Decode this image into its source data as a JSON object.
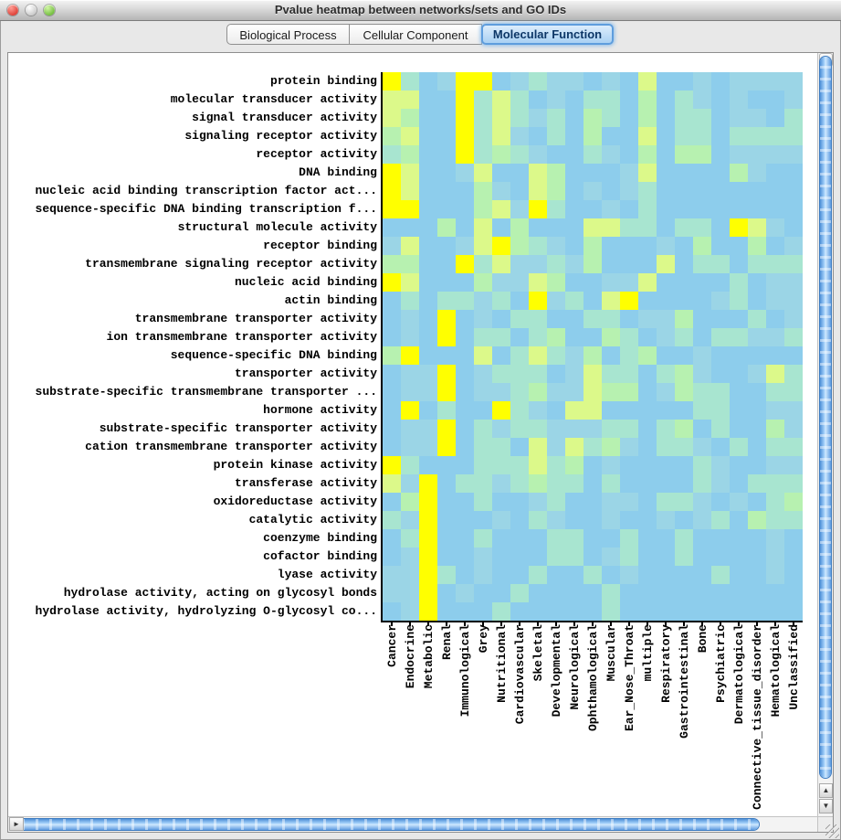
{
  "window": {
    "title": "Pvalue heatmap between networks/sets and GO IDs"
  },
  "tabs": [
    {
      "label": "Biological Process",
      "selected": false
    },
    {
      "label": "Cellular Component",
      "selected": false
    },
    {
      "label": "Molecular Function",
      "selected": true
    }
  ],
  "chart_data": {
    "type": "heatmap",
    "title": "Pvalue heatmap between networks/sets and GO IDs",
    "rows": [
      "protein binding",
      "molecular transducer activity",
      "signal transducer activity",
      "signaling receptor activity",
      "receptor activity",
      "DNA binding",
      "nucleic acid binding transcription factor act...",
      "sequence-specific DNA binding transcription f...",
      "structural molecule activity",
      "receptor binding",
      "transmembrane signaling receptor activity",
      "nucleic acid binding",
      "actin binding",
      "transmembrane transporter activity",
      "ion transmembrane transporter activity",
      "sequence-specific DNA binding",
      "transporter activity",
      "substrate-specific transmembrane transporter ...",
      "hormone activity",
      "substrate-specific transporter activity",
      "cation transmembrane transporter activity",
      "protein kinase activity",
      "transferase activity",
      "oxidoreductase activity",
      "catalytic activity",
      "coenzyme binding",
      "cofactor binding",
      "lyase activity",
      "hydrolase activity, acting on glycosyl bonds",
      "hydrolase activity, hydrolyzing O-glycosyl co..."
    ],
    "columns": [
      "Cancer",
      "Endocrine",
      "Metabolic",
      "Renal",
      "Immunological",
      "Grey",
      "Nutritional",
      "Cardiovascular",
      "Skeletal",
      "Developmental",
      "Neurological",
      "Ophthamological",
      "Muscular",
      "Ear_Nose_Throat",
      "multiple",
      "Respiratory",
      "Gastrointestinal",
      "Bone",
      "Psychiatric",
      "Dermatological",
      "Connective_tissue_disorder",
      "Hematological",
      "Unclassified"
    ],
    "palette": [
      "#8dcdec",
      "#9bd5e6",
      "#a8e5d0",
      "#b7f1b0",
      "#dcf98a",
      "#ffff00"
    ],
    "palette_meaning": "0 = least significant (sky blue) ... 5 = most significant p-value (bright yellow)",
    "values": [
      "52015501211010400101111",
      "44005242010220302101001",
      "43005242120320302201102",
      "34005241020300402202222",
      "23005232100210303301111",
      "54001400430001400003100",
      "54000310430101200000000",
      "55000341520010200000000",
      "00030403000442202205410",
      "14001453210300010300301",
      "33005241121300040220222",
      "54000311430011400002011",
      "02022120512045000012011",
      "01050102200220113000201",
      "01050220230032012022112",
      "35000402421302300100000",
      "01150122201422023100142",
      "01150112311433013220022",
      "05020052104400000220011",
      "01150212211122023020031",
      "01150220414231022102022",
      "52000222423010000210011",
      "41502212322020000210222",
      "03500200120011022101023",
      "21500010210010010120322",
      "02500200022002002000010",
      "01500100022012002000010",
      "11520100200201000020010",
      "11501002000020000000000",
      "01500020000020000000000"
    ]
  },
  "scrollbar": {
    "up_glyph": "▲",
    "down_glyph": "▼",
    "left_glyph": "◄",
    "right_glyph": "►"
  }
}
